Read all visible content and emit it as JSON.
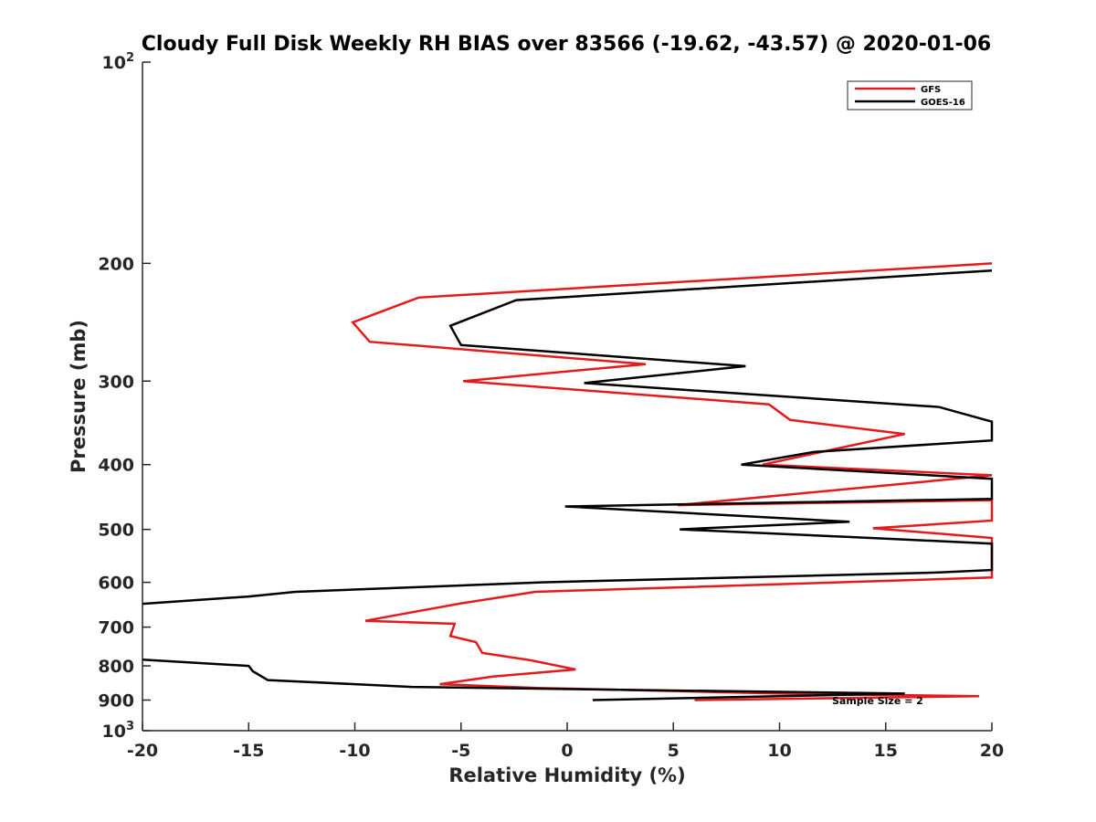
{
  "chart_data": {
    "type": "line",
    "title": "Cloudy Full Disk Weekly RH BIAS over 83566 (-19.62, -43.57) @ 2020-01-06",
    "xlabel": "Relative Humidity (%)",
    "ylabel": "Pressure (mb)",
    "xlim": [
      -20,
      20
    ],
    "ylim": [
      100,
      1000
    ],
    "y_scale": "log",
    "y_direction": "reversed",
    "x_ticks": [
      -20,
      -15,
      -10,
      -5,
      0,
      5,
      10,
      15,
      20
    ],
    "x_tick_labels": [
      "-20",
      "-15",
      "-10",
      "-5",
      "0",
      "5",
      "10",
      "15",
      "20"
    ],
    "y_ticks": [
      {
        "value": 100,
        "base": "10",
        "exp": "2"
      },
      {
        "value": 200,
        "base": "200",
        "exp": ""
      },
      {
        "value": 300,
        "base": "300",
        "exp": ""
      },
      {
        "value": 400,
        "base": "400",
        "exp": ""
      },
      {
        "value": 500,
        "base": "500",
        "exp": ""
      },
      {
        "value": 600,
        "base": "600",
        "exp": ""
      },
      {
        "value": 700,
        "base": "700",
        "exp": ""
      },
      {
        "value": 800,
        "base": "800",
        "exp": ""
      },
      {
        "value": 900,
        "base": "900",
        "exp": ""
      },
      {
        "value": 1000,
        "base": "10",
        "exp": "3"
      }
    ],
    "grid": false,
    "legend_position": "top-right",
    "annotation": "Sample Size = 2",
    "series": [
      {
        "name": "GFS",
        "color": "#e41a1c",
        "points": [
          [
            20,
            200
          ],
          [
            -7,
            225
          ],
          [
            -10.1,
            245
          ],
          [
            -9.3,
            262
          ],
          [
            3.7,
            283
          ],
          [
            -4.9,
            300
          ],
          [
            9.5,
            325
          ],
          [
            10.5,
            343
          ],
          [
            15.9,
            360
          ],
          [
            9.2,
            400
          ],
          [
            20,
            415
          ],
          [
            5.2,
            460
          ],
          [
            20,
            452
          ],
          [
            20,
            468
          ],
          [
            20,
            485
          ],
          [
            14.4,
            498
          ],
          [
            20,
            515
          ],
          [
            20,
            590
          ],
          [
            -1.5,
            620
          ],
          [
            -5,
            645
          ],
          [
            -7.3,
            665
          ],
          [
            -9.5,
            685
          ],
          [
            -5.3,
            692
          ],
          [
            -5.5,
            722
          ],
          [
            -4.3,
            737
          ],
          [
            -4,
            765
          ],
          [
            -1.7,
            785
          ],
          [
            0.4,
            810
          ],
          [
            -3.5,
            830
          ],
          [
            -6,
            852
          ],
          [
            -1.4,
            863
          ],
          [
            10,
            880
          ],
          [
            19.4,
            888
          ],
          [
            6,
            900
          ]
        ]
      },
      {
        "name": "GOES-16",
        "color": "#000000",
        "points": [
          [
            20,
            205
          ],
          [
            -2.4,
            227
          ],
          [
            -5.5,
            248
          ],
          [
            -5,
            265
          ],
          [
            8.4,
            285
          ],
          [
            0.8,
            302
          ],
          [
            17.5,
            328
          ],
          [
            20,
            345
          ],
          [
            20,
            368
          ],
          [
            11.6,
            383
          ],
          [
            8.2,
            400
          ],
          [
            20,
            420
          ],
          [
            20,
            450
          ],
          [
            -0.1,
            462
          ],
          [
            13.3,
            487
          ],
          [
            5.3,
            500
          ],
          [
            14.3,
            515
          ],
          [
            20,
            525
          ],
          [
            20,
            575
          ],
          [
            17.5,
            580
          ],
          [
            -1.2,
            600
          ],
          [
            -12.8,
            620
          ],
          [
            -15,
            630
          ],
          [
            -20,
            646
          ]
        ]
      },
      {
        "name": "",
        "color": "#000000",
        "points": [
          [
            -20,
            783
          ],
          [
            -15,
            800
          ],
          [
            -14.8,
            815
          ],
          [
            -14.1,
            840
          ],
          [
            -7.3,
            860
          ],
          [
            15.9,
            880
          ],
          [
            1.2,
            900
          ]
        ]
      }
    ]
  }
}
